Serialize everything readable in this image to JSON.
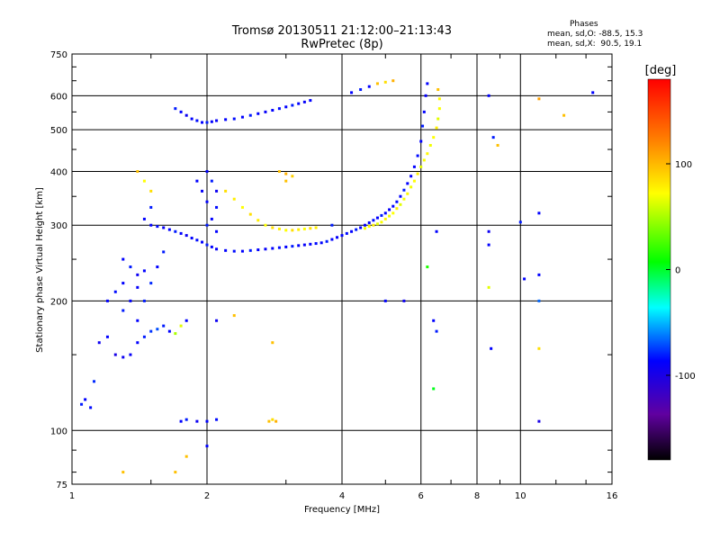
{
  "header": {
    "title": "Tromsø 20130511 21:12:00–21:13:43",
    "subtitle": "RwPretec (8p)"
  },
  "phase_stats": {
    "heading": "Phases",
    "o_line": "mean, sd,O: -88.5, 15.3",
    "x_line": "mean, sd,X:  90.5, 19.1"
  },
  "chart_data": {
    "type": "scatter",
    "xlabel": "Frequency [MHz]",
    "ylabel": "Stationary phase Virtual Height [km]",
    "x_scale": "log",
    "y_scale": "log",
    "xlim": [
      1,
      16
    ],
    "ylim": [
      75,
      750
    ],
    "x_ticks": [
      1,
      2,
      4,
      6,
      8,
      10,
      16
    ],
    "y_ticks": [
      75,
      100,
      200,
      300,
      400,
      500,
      600,
      750
    ],
    "grid": true,
    "colorbar": {
      "label": "[deg]",
      "range": [
        -180,
        180
      ],
      "ticks": [
        100,
        0,
        -100
      ]
    },
    "points": [
      [
        1.05,
        115,
        -95
      ],
      [
        1.07,
        118,
        -100
      ],
      [
        1.1,
        113,
        -98
      ],
      [
        1.12,
        130,
        -92
      ],
      [
        1.15,
        160,
        -105
      ],
      [
        1.2,
        165,
        -100
      ],
      [
        1.25,
        150,
        -110
      ],
      [
        1.3,
        148,
        -105
      ],
      [
        1.35,
        150,
        -102
      ],
      [
        1.4,
        160,
        -100
      ],
      [
        1.45,
        165,
        -95
      ],
      [
        1.5,
        170,
        -90
      ],
      [
        1.55,
        172,
        -85
      ],
      [
        1.6,
        175,
        -95
      ],
      [
        1.65,
        170,
        -100
      ],
      [
        1.7,
        168,
        60
      ],
      [
        1.75,
        175,
        80
      ],
      [
        1.8,
        180,
        -100
      ],
      [
        1.4,
        180,
        -100
      ],
      [
        1.45,
        200,
        -95
      ],
      [
        1.5,
        220,
        -92
      ],
      [
        1.55,
        240,
        -100
      ],
      [
        1.6,
        260,
        -95
      ],
      [
        1.5,
        300,
        -100
      ],
      [
        1.55,
        298,
        -98
      ],
      [
        1.6,
        296,
        -102
      ],
      [
        1.65,
        293,
        -100
      ],
      [
        1.7,
        290,
        -95
      ],
      [
        1.75,
        287,
        -100
      ],
      [
        1.8,
        284,
        -105
      ],
      [
        1.85,
        280,
        -100
      ],
      [
        1.9,
        277,
        -98
      ],
      [
        1.95,
        274,
        -100
      ],
      [
        2.0,
        270,
        -95
      ],
      [
        2.05,
        267,
        -100
      ],
      [
        2.1,
        264,
        -102
      ],
      [
        2.2,
        262,
        -100
      ],
      [
        2.3,
        261,
        -98
      ],
      [
        2.4,
        261,
        -100
      ],
      [
        2.5,
        262,
        -95
      ],
      [
        2.6,
        263,
        -100
      ],
      [
        2.7,
        264,
        -102
      ],
      [
        2.8,
        265,
        -100
      ],
      [
        2.9,
        266,
        -98
      ],
      [
        3.0,
        267,
        -100
      ],
      [
        3.1,
        268,
        -95
      ],
      [
        3.2,
        269,
        -100
      ],
      [
        3.3,
        270,
        -102
      ],
      [
        3.4,
        271,
        -100
      ],
      [
        3.5,
        272,
        -98
      ],
      [
        3.6,
        273,
        -100
      ],
      [
        3.7,
        275,
        -95
      ],
      [
        3.8,
        278,
        -100
      ],
      [
        3.9,
        281,
        -102
      ],
      [
        4.0,
        284,
        -100
      ],
      [
        4.1,
        287,
        -98
      ],
      [
        4.2,
        290,
        -100
      ],
      [
        4.3,
        293,
        -95
      ],
      [
        4.4,
        296,
        -100
      ],
      [
        4.5,
        300,
        -102
      ],
      [
        4.6,
        304,
        -100
      ],
      [
        4.7,
        308,
        -98
      ],
      [
        4.8,
        312,
        -100
      ],
      [
        4.9,
        316,
        -95
      ],
      [
        5.0,
        320,
        -100
      ],
      [
        5.1,
        326,
        -102
      ],
      [
        5.2,
        332,
        -100
      ],
      [
        5.3,
        340,
        -98
      ],
      [
        5.4,
        350,
        -100
      ],
      [
        5.5,
        362,
        -95
      ],
      [
        5.6,
        375,
        -100
      ],
      [
        5.7,
        390,
        -102
      ],
      [
        5.8,
        410,
        -100
      ],
      [
        5.9,
        435,
        -98
      ],
      [
        6.0,
        470,
        -100
      ],
      [
        6.05,
        510,
        -95
      ],
      [
        6.1,
        550,
        -100
      ],
      [
        6.15,
        600,
        -102
      ],
      [
        6.2,
        640,
        -100
      ],
      [
        4.5,
        295,
        85
      ],
      [
        4.6,
        298,
        90
      ],
      [
        4.7,
        300,
        95
      ],
      [
        4.8,
        302,
        80
      ],
      [
        4.9,
        305,
        88
      ],
      [
        5.0,
        310,
        92
      ],
      [
        5.1,
        315,
        85
      ],
      [
        5.2,
        320,
        90
      ],
      [
        5.3,
        328,
        95
      ],
      [
        5.4,
        335,
        80
      ],
      [
        5.5,
        345,
        88
      ],
      [
        5.6,
        355,
        92
      ],
      [
        5.7,
        368,
        85
      ],
      [
        5.8,
        380,
        90
      ],
      [
        5.9,
        395,
        95
      ],
      [
        6.0,
        410,
        80
      ],
      [
        6.1,
        425,
        88
      ],
      [
        6.2,
        440,
        92
      ],
      [
        6.3,
        460,
        85
      ],
      [
        6.4,
        480,
        90
      ],
      [
        6.5,
        505,
        95
      ],
      [
        6.55,
        530,
        80
      ],
      [
        6.6,
        560,
        88
      ],
      [
        6.6,
        590,
        92
      ],
      [
        6.55,
        620,
        110
      ],
      [
        2.2,
        360,
        100
      ],
      [
        2.3,
        345,
        95
      ],
      [
        2.4,
        330,
        90
      ],
      [
        2.5,
        318,
        100
      ],
      [
        2.6,
        308,
        95
      ],
      [
        2.7,
        300,
        90
      ],
      [
        2.8,
        296,
        100
      ],
      [
        2.9,
        294,
        95
      ],
      [
        3.0,
        292,
        90
      ],
      [
        3.1,
        292,
        100
      ],
      [
        3.2,
        293,
        95
      ],
      [
        3.3,
        294,
        90
      ],
      [
        3.4,
        295,
        100
      ],
      [
        3.5,
        296,
        95
      ],
      [
        2.9,
        400,
        110
      ],
      [
        3.0,
        395,
        115
      ],
      [
        3.1,
        390,
        105
      ],
      [
        3.0,
        380,
        110
      ],
      [
        1.7,
        560,
        -95
      ],
      [
        1.75,
        550,
        -100
      ],
      [
        1.8,
        540,
        -105
      ],
      [
        1.85,
        530,
        -100
      ],
      [
        1.9,
        525,
        -98
      ],
      [
        1.95,
        520,
        -100
      ],
      [
        2.0,
        520,
        -95
      ],
      [
        2.05,
        522,
        -100
      ],
      [
        2.1,
        525,
        -102
      ],
      [
        2.2,
        528,
        -100
      ],
      [
        2.3,
        530,
        -98
      ],
      [
        2.4,
        535,
        -100
      ],
      [
        2.5,
        540,
        -95
      ],
      [
        2.6,
        545,
        -100
      ],
      [
        2.7,
        550,
        -102
      ],
      [
        2.8,
        555,
        -100
      ],
      [
        2.9,
        560,
        -98
      ],
      [
        3.0,
        565,
        -100
      ],
      [
        3.1,
        570,
        -95
      ],
      [
        3.2,
        575,
        -100
      ],
      [
        3.3,
        580,
        -102
      ],
      [
        3.4,
        585,
        -100
      ],
      [
        2.0,
        400,
        -100
      ],
      [
        2.05,
        380,
        -95
      ],
      [
        2.1,
        360,
        -105
      ],
      [
        2.0,
        340,
        -100
      ],
      [
        2.1,
        330,
        -98
      ],
      [
        2.05,
        310,
        -100
      ],
      [
        2.0,
        300,
        -95
      ],
      [
        2.1,
        290,
        -100
      ],
      [
        1.9,
        380,
        -100
      ],
      [
        1.95,
        360,
        -102
      ],
      [
        1.3,
        250,
        -100
      ],
      [
        1.35,
        240,
        -95
      ],
      [
        1.4,
        230,
        -105
      ],
      [
        1.3,
        220,
        -100
      ],
      [
        1.25,
        210,
        -98
      ],
      [
        1.2,
        200,
        -100
      ],
      [
        1.3,
        190,
        -95
      ],
      [
        1.35,
        200,
        -100
      ],
      [
        1.4,
        215,
        -102
      ],
      [
        1.45,
        235,
        -100
      ],
      [
        1.4,
        400,
        110
      ],
      [
        1.45,
        380,
        90
      ],
      [
        1.5,
        360,
        100
      ],
      [
        1.5,
        330,
        -95
      ],
      [
        1.45,
        310,
        -100
      ],
      [
        1.75,
        105,
        -100
      ],
      [
        1.8,
        106,
        -95
      ],
      [
        1.9,
        105,
        -105
      ],
      [
        2.0,
        105,
        -100
      ],
      [
        2.1,
        106,
        -98
      ],
      [
        2.75,
        105,
        110
      ],
      [
        2.8,
        106,
        100
      ],
      [
        2.85,
        105,
        115
      ],
      [
        4.2,
        610,
        -100
      ],
      [
        4.4,
        620,
        -95
      ],
      [
        4.6,
        630,
        -100
      ],
      [
        4.8,
        640,
        110
      ],
      [
        5.0,
        645,
        100
      ],
      [
        5.2,
        650,
        115
      ],
      [
        8.5,
        600,
        -100
      ],
      [
        8.7,
        480,
        -95
      ],
      [
        8.9,
        460,
        110
      ],
      [
        11.0,
        590,
        120
      ],
      [
        12.5,
        540,
        110
      ],
      [
        14.5,
        610,
        -100
      ],
      [
        11.0,
        320,
        -100
      ],
      [
        8.5,
        290,
        -105
      ],
      [
        8.5,
        270,
        -100
      ],
      [
        10.0,
        305,
        -95
      ],
      [
        10.2,
        225,
        -100
      ],
      [
        11.0,
        230,
        -100
      ],
      [
        8.5,
        215,
        80
      ],
      [
        11.0,
        200,
        -80
      ],
      [
        11.0,
        105,
        -110
      ],
      [
        8.6,
        155,
        -100
      ],
      [
        11.0,
        155,
        100
      ],
      [
        6.5,
        290,
        -100
      ],
      [
        5.5,
        200,
        -105
      ],
      [
        6.4,
        180,
        -100
      ],
      [
        6.5,
        170,
        -95
      ],
      [
        6.4,
        125,
        -5
      ],
      [
        6.2,
        240,
        10
      ],
      [
        1.3,
        80,
        110
      ],
      [
        1.7,
        80,
        110
      ],
      [
        1.8,
        87,
        110
      ],
      [
        2.0,
        92,
        -100
      ],
      [
        2.1,
        180,
        -105
      ],
      [
        2.3,
        185,
        110
      ],
      [
        2.8,
        160,
        110
      ],
      [
        5.0,
        200,
        -100
      ],
      [
        3.8,
        300,
        -95
      ]
    ]
  }
}
